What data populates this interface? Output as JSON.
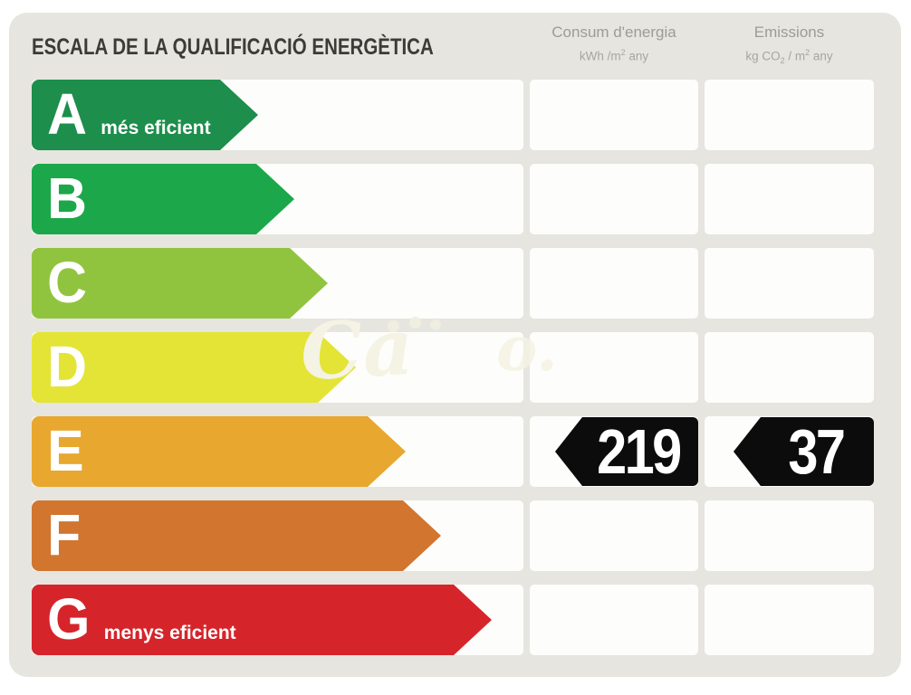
{
  "title": "ESCALA DE LA QUALIFICACIÓ ENERGÈTICA",
  "columns": [
    {
      "id": "consumption",
      "title": "Consum d'energia",
      "unit_parts": [
        {
          "t": "kWh /m"
        },
        {
          "t": "2",
          "style": "sup"
        },
        {
          "t": "  any"
        }
      ]
    },
    {
      "id": "emissions",
      "title": "Emissions",
      "unit_parts": [
        {
          "t": "kg CO"
        },
        {
          "t": "2",
          "style": "sub"
        },
        {
          "t": " / m"
        },
        {
          "t": "2",
          "style": "sup"
        },
        {
          "t": "  any"
        }
      ]
    }
  ],
  "scale_rows": [
    {
      "grade": "A",
      "label": "més eficient",
      "color": "#1d8e4b",
      "arrow_width": 250
    },
    {
      "grade": "B",
      "label": "",
      "color": "#1ca74a",
      "arrow_width": 290
    },
    {
      "grade": "C",
      "label": "",
      "color": "#90c43f",
      "arrow_width": 327
    },
    {
      "grade": "D",
      "label": "",
      "color": "#e3e436",
      "arrow_width": 358
    },
    {
      "grade": "E",
      "label": "",
      "color": "#e8a72e",
      "arrow_width": 413
    },
    {
      "grade": "F",
      "label": "",
      "color": "#d1752f",
      "arrow_width": 452
    },
    {
      "grade": "G",
      "label": "menys eficient",
      "color": "#d6242b",
      "arrow_width": 508
    }
  ],
  "rating": {
    "grade": "E",
    "consumption_value": "219",
    "emissions_value": "37",
    "marker_color": "#0c0c0c",
    "text_color": "#ffffff"
  },
  "watermark": {
    "visible_text": "Ca",
    "fragment_text": "o.",
    "color": "#f5f3e4"
  },
  "colors": {
    "panel_background": "#e6e5df",
    "cell_background": "#fdfdfb",
    "title_text": "#3b3b38",
    "header_text": "#9c9c97"
  },
  "chart_data": {
    "type": "bar",
    "title": "ESCALA DE LA QUALIFICACIÓ ENERGÈTICA",
    "categories": [
      "A",
      "B",
      "C",
      "D",
      "E",
      "F",
      "G"
    ],
    "category_labels": {
      "A": "més eficient",
      "G": "menys eficient"
    },
    "bar_colors": [
      "#1d8e4b",
      "#1ca74a",
      "#90c43f",
      "#e3e436",
      "#e8a72e",
      "#d1752f",
      "#d6242b"
    ],
    "bar_relative_lengths": [
      250,
      290,
      327,
      358,
      413,
      452,
      508
    ],
    "rated_grade": "E",
    "consumption_kwh_m2_any": 219,
    "emissions_kg_co2_m2_any": 37,
    "columns": [
      "Consum d'energia (kWh/m2 any)",
      "Emissions (kg CO2/m2 any)"
    ],
    "legend_position": "none",
    "grid": false
  }
}
